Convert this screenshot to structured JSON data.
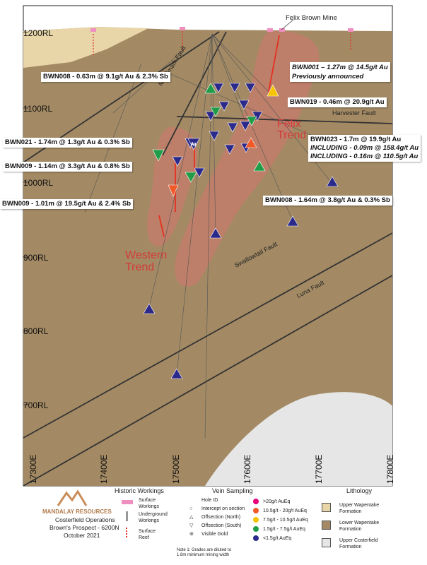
{
  "mine_label": "Felix Brown Mine",
  "rl_labels": [
    "1200RL",
    "1100RL",
    "1000RL",
    "900RL",
    "800RL",
    "700RL"
  ],
  "easting_labels": [
    "17400E",
    "17500E",
    "17600E",
    "17700E",
    "17800E"
  ],
  "easting_partial": "17300E",
  "faults": {
    "metalmark": "Metalmark Fault",
    "harvester": "Harvester Fault",
    "swallowtail": "Swallowtail Fault",
    "luna": "Luna Fault"
  },
  "trends": {
    "felix_1": "Felix",
    "felix_2": "Trend",
    "western_1": "Western",
    "western_2": "Trend"
  },
  "callouts": {
    "bwn008_top": "BWN008 - 0.63m @ 9.1g/t Au & 2.3% Sb",
    "bwn001": "BWN001 – 1.27m @ 14.5g/t Au",
    "bwn001_note": "Previously announced",
    "bwn019": "BWN019 - 0.46m @ 20.9g/t Au",
    "bwn021": "BWN021 - 1.74m @ 1.3g/t Au & 0.3% Sb",
    "bwn023": "BWN023 - 1.7m @ 19.9g/t Au",
    "bwn023_inc1": "INCLUDING - 0.09m @ 158.4g/t Au",
    "bwn023_inc2": "INCLUDING - 0.16m @ 110.5g/t Au",
    "bwn009_a": "BWN009 - 1.14m @ 3.3g/t Au & 0.8% Sb",
    "bwn009_b": "BWN009 - 1.01m @ 19.5g/t Au & 2.4% Sb",
    "bwn008_low": "BWN008 - 1.64m @ 3.8g/t Au & 0.3% Sb"
  },
  "au_symbol": "Au",
  "legend": {
    "company": "MANDALAY RESOURCES",
    "title_lines": [
      "Costerfield Operations",
      "Brown's Prospect - 6200N",
      "October 2021"
    ],
    "historic_title": "Historic Workings",
    "historic_items": [
      "Surface Workings",
      "Underground Workings",
      "Surface Reef"
    ],
    "vein_title": "Vein Sampling",
    "hole_id": "Hole ID",
    "symbols": [
      "Intercept on section",
      "Offsection (North)",
      "Offsection (South)",
      "Visible Gold"
    ],
    "grades": [
      {
        "label": ">20g/t AuEq",
        "color": "#e5007d"
      },
      {
        "label": "10.5g/t - 20g/t AuEq",
        "color": "#ef5a28"
      },
      {
        "label": "7.5g/t - 10.5g/t AuEq",
        "color": "#f6c400"
      },
      {
        "label": "1.5g/t - 7.5g/t AuEq",
        "color": "#1f9d48"
      },
      {
        "label": "<1.5g/t AuEq",
        "color": "#2b2a8c"
      }
    ],
    "note": "Note 1: Grades are diluted to 1.8m minimum mining width",
    "lithology_title": "Lithology",
    "lithology": [
      {
        "label": "Upper Wapentake Formation",
        "color": "#e8d5a8"
      },
      {
        "label": "Lower Wapentake Formation",
        "color": "#a38a64"
      },
      {
        "label": "Upper Costerfield Formation",
        "color": "#e6e6e6"
      }
    ]
  },
  "colors": {
    "lower_wapentake": "#a38a64",
    "upper_wapentake": "#e8d5a8",
    "trend_zone": "#c27c6a",
    "low_grade": "#2b2a8c",
    "mid_grade": "#1f9d48",
    "high_grade": "#ef5a28",
    "gold_grade": "#f6c400"
  }
}
